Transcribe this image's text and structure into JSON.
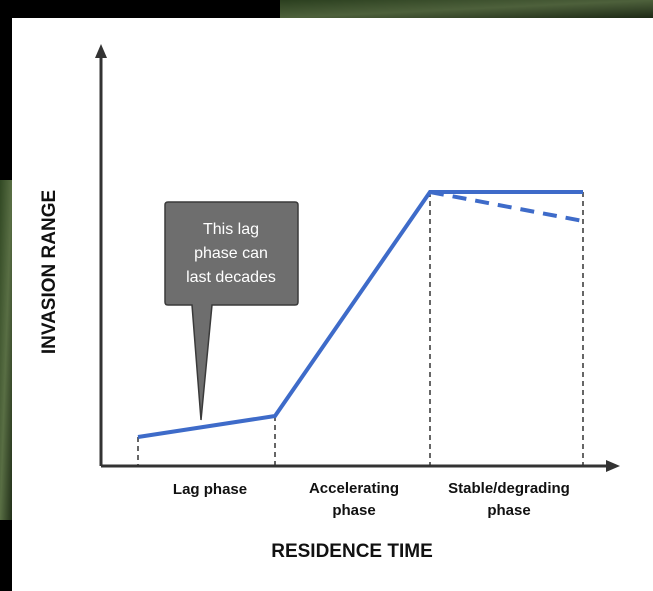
{
  "diagram": {
    "y_axis_label": "INVASION RANGE",
    "x_axis_label": "RESIDENCE TIME",
    "callout": [
      "This lag",
      "phase can",
      "last decades"
    ],
    "phases": [
      [
        "Lag phase"
      ],
      [
        "Accelerating",
        "phase"
      ],
      [
        "Stable/degrading",
        "phase"
      ]
    ]
  }
}
